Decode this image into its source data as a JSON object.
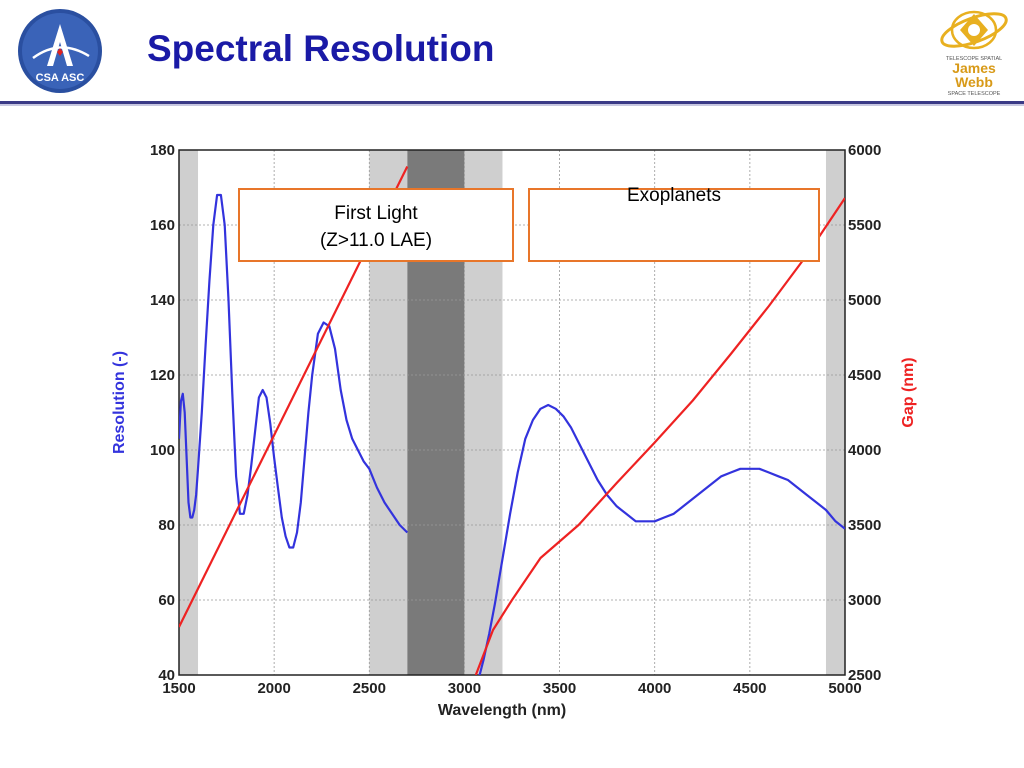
{
  "slide": {
    "title": "Spectral Resolution",
    "accent_color": "#1a1aa6",
    "rule_color": "#3a3a86"
  },
  "logos": {
    "left": {
      "text": "CSA ASC"
    },
    "right": {
      "line1": "TELESCOPE SPATIAL",
      "line2": "James",
      "line3": "Webb",
      "line4": "SPACE TELESCOPE"
    }
  },
  "annotations": {
    "first_light_line1": "First Light",
    "first_light_line2": "(Z>11.0 LAE)",
    "exoplanets": "Exoplanets",
    "box_color": "#e8762a"
  },
  "chart_data": {
    "type": "line",
    "title": "",
    "xlabel": "Wavelength (nm)",
    "ylabel_left": "Resolution (-)",
    "ylabel_right": "Gap (nm)",
    "xlim": [
      1500,
      5000
    ],
    "ylim_left": [
      40,
      180
    ],
    "ylim_right": [
      2500,
      6000
    ],
    "x_ticks": [
      "1500",
      "2000",
      "2500",
      "3000",
      "3500",
      "4000",
      "4500",
      "5000"
    ],
    "y_ticks_left": [
      "40",
      "60",
      "80",
      "100",
      "120",
      "140",
      "160",
      "180"
    ],
    "y_ticks_right": [
      "2500",
      "3000",
      "3500",
      "4000",
      "4500",
      "5000",
      "5500",
      "6000"
    ],
    "grid": true,
    "shaded_bands": [
      {
        "from": 1500,
        "to": 1600,
        "shade": "light"
      },
      {
        "from": 2500,
        "to": 2700,
        "shade": "light"
      },
      {
        "from": 2700,
        "to": 3000,
        "shade": "dark"
      },
      {
        "from": 3000,
        "to": 3200,
        "shade": "light"
      },
      {
        "from": 4900,
        "to": 5000,
        "shade": "light"
      }
    ],
    "series": [
      {
        "axis": "left",
        "color": "#3333dd",
        "segments": [
          {
            "x": [
              1500,
              1510,
              1520,
              1530,
              1540,
              1550,
              1560,
              1570,
              1580,
              1590,
              1600,
              1620,
              1640,
              1660,
              1680,
              1700,
              1720,
              1740,
              1760,
              1780,
              1800,
              1820,
              1840,
              1860,
              1880,
              1900,
              1920,
              1940,
              1960,
              1980,
              2000,
              2020,
              2040,
              2060,
              2080,
              2100,
              2120,
              2140,
              2160,
              2180,
              2200,
              2230,
              2260,
              2290,
              2320,
              2350,
              2380,
              2410,
              2440,
              2470,
              2500,
              2540,
              2580,
              2620,
              2660,
              2700
            ],
            "y": [
              103,
              113,
              115,
              110,
              98,
              86,
              82,
              82,
              84,
              88,
              95,
              110,
              128,
              145,
              160,
              168,
              168,
              160,
              140,
              115,
              93,
              83,
              83,
              88,
              96,
              105,
              114,
              116,
              114,
              107,
              98,
              90,
              82,
              77,
              74,
              74,
              78,
              86,
              98,
              110,
              120,
              131,
              134,
              133,
              127,
              116,
              108,
              103,
              100,
              97,
              95,
              90,
              86,
              83,
              80,
              78
            ]
          },
          {
            "x": [
              3070,
              3100,
              3130,
              3160,
              3200,
              3240,
              3280,
              3320,
              3360,
              3400,
              3440,
              3480,
              3520,
              3560,
              3600,
              3650,
              3700,
              3750,
              3800,
              3850,
              3900,
              3950,
              4000,
              4050,
              4100,
              4150,
              4200,
              4250,
              4300,
              4350,
              4400,
              4450,
              4500,
              4550,
              4600,
              4650,
              4700,
              4750,
              4800,
              4850,
              4900,
              4950,
              5000
            ],
            "y": [
              38,
              44,
              51,
              59,
              71,
              83,
              94,
              103,
              108,
              111,
              112,
              111,
              109,
              106,
              102,
              97,
              92,
              88,
              85,
              83,
              81,
              81,
              81,
              82,
              83,
              85,
              87,
              89,
              91,
              93,
              94,
              95,
              95,
              95,
              94,
              93,
              92,
              90,
              88,
              86,
              84,
              81,
              79
            ]
          }
        ]
      },
      {
        "axis": "right",
        "color": "#ee2222",
        "segments": [
          {
            "x": [
              1500,
              2700
            ],
            "y": [
              2820,
              5890
            ]
          },
          {
            "x": [
              3060,
              3150,
              3250,
              3400,
              3600,
              3800,
              4000,
              4200,
              4400,
              4600,
              4800,
              5000
            ],
            "y": [
              2500,
              2800,
              3000,
              3280,
              3500,
              3780,
              4050,
              4330,
              4640,
              4960,
              5300,
              5680
            ]
          }
        ]
      }
    ]
  }
}
